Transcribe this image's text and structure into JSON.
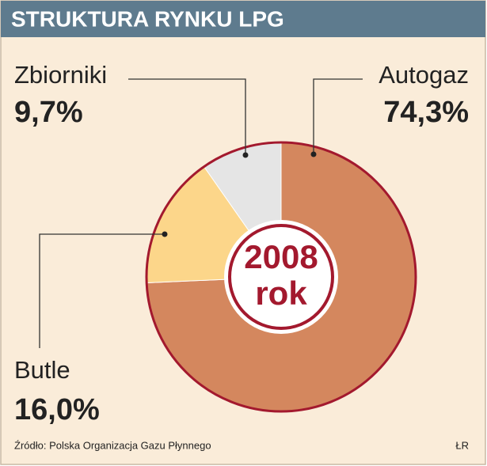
{
  "chart_data": {
    "type": "pie",
    "donut": true,
    "title": "STRUKTURA RYNKU LPG",
    "categories": [
      "Autogaz",
      "Butle",
      "Zbiorniki"
    ],
    "values": [
      74.3,
      16.0,
      9.7
    ],
    "value_labels": [
      "74,3%",
      "16,0%",
      "9,7%"
    ],
    "colors": [
      "#d4875e",
      "#fcd68a",
      "#e5e5e5"
    ],
    "center_text": [
      "2008",
      "rok"
    ],
    "source": "Źródło: Polska Organizacja Gazu Płynnego",
    "credit": "ŁR"
  }
}
